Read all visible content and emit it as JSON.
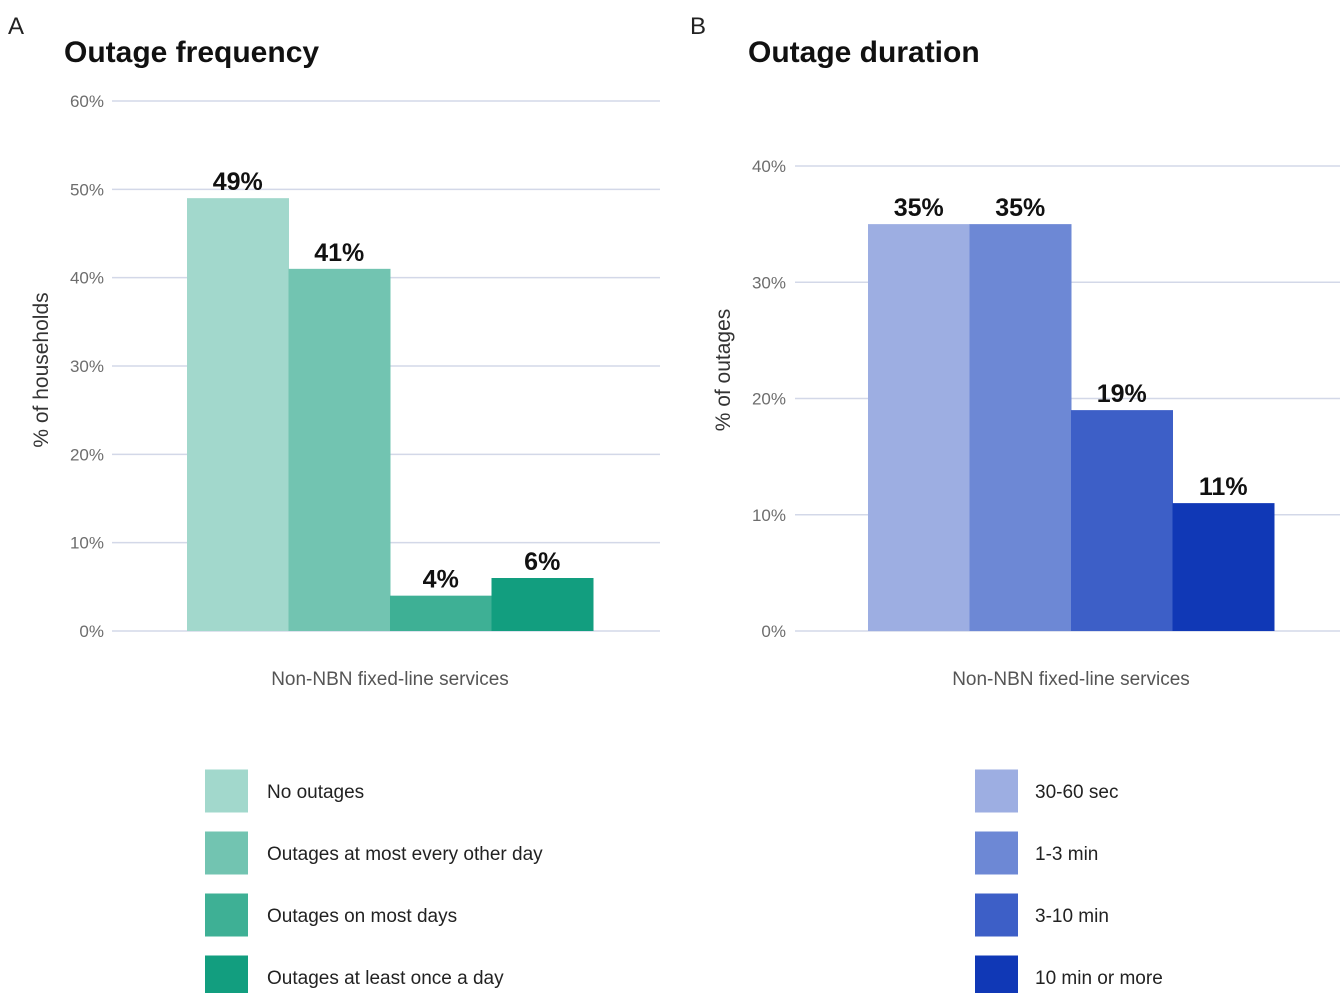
{
  "chart_data": [
    {
      "panel": "A",
      "type": "bar",
      "title": "Outage frequency",
      "ylabel": "% of households",
      "xlabel": "",
      "categories": [
        "Non-NBN fixed-line services"
      ],
      "ylim": [
        0,
        60
      ],
      "yticks": [
        0,
        10,
        20,
        30,
        40,
        50,
        60
      ],
      "ytick_labels": [
        "0%",
        "10%",
        "20%",
        "30%",
        "40%",
        "50%",
        "60%"
      ],
      "grid": true,
      "legend_position": "bottom",
      "series": [
        {
          "name": "No outages",
          "values": [
            49
          ],
          "label": "49%",
          "color": "#a2d8cc"
        },
        {
          "name": "Outages at most every other day",
          "values": [
            41
          ],
          "label": "41%",
          "color": "#72c4b1"
        },
        {
          "name": "Outages on most days",
          "values": [
            4
          ],
          "label": "4%",
          "color": "#3eb095"
        },
        {
          "name": "Outages at least once a day",
          "values": [
            6
          ],
          "label": "6%",
          "color": "#129e7f"
        }
      ]
    },
    {
      "panel": "B",
      "type": "bar",
      "title": "Outage duration",
      "ylabel": "% of outages",
      "xlabel": "",
      "categories": [
        "Non-NBN fixed-line services"
      ],
      "ylim": [
        0,
        40
      ],
      "yticks": [
        0,
        10,
        20,
        30,
        40
      ],
      "ytick_labels": [
        "0%",
        "10%",
        "20%",
        "30%",
        "40%"
      ],
      "grid": true,
      "legend_position": "bottom",
      "series": [
        {
          "name": "30-60 sec",
          "values": [
            35
          ],
          "label": "35%",
          "color": "#9daee2"
        },
        {
          "name": "1-3 min",
          "values": [
            35
          ],
          "label": "35%",
          "color": "#6d88d5"
        },
        {
          "name": "3-10 min",
          "values": [
            19
          ],
          "label": "19%",
          "color": "#3d5fc7"
        },
        {
          "name": "10 min or more",
          "values": [
            11
          ],
          "label": "11%",
          "color": "#1038b6"
        }
      ]
    }
  ]
}
